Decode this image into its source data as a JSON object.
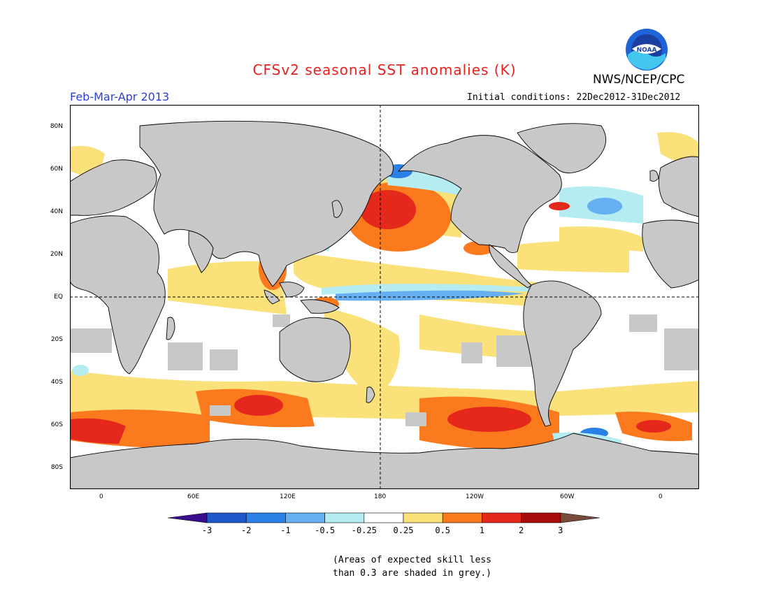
{
  "title": "CFSv2 seasonal SST anomalies (K)",
  "agency": "NWS/NCEP/CPC",
  "logo_text": "NOAA",
  "season": "Feb-Mar-Apr 2013",
  "initial_conditions": "Initial conditions: 22Dec2012-31Dec2012",
  "lat_labels": [
    "80N",
    "60N",
    "40N",
    "20N",
    "EQ",
    "20S",
    "40S",
    "60S",
    "80S"
  ],
  "lon_labels": [
    "0",
    "60E",
    "120E",
    "180",
    "120W",
    "60W",
    "0"
  ],
  "colorbar": {
    "labels": [
      "-3",
      "-2",
      "-1",
      "-0.5",
      "-0.25",
      "0.25",
      "0.5",
      "1",
      "2",
      "3"
    ],
    "colors": [
      "#3a0d8f",
      "#1c58c9",
      "#2b80e6",
      "#66b0f2",
      "#b4ecf2",
      "#ffffff",
      "#fbe17a",
      "#fb7a1e",
      "#e5281c",
      "#a80c0c",
      "#7a4a3c"
    ]
  },
  "note_line1": "(Areas of expected skill less",
  "note_line2": "than 0.3 are shaded in grey.)",
  "colors": {
    "land": "#c8c8c8",
    "title": "#e8201e",
    "season": "#2c3fd8"
  }
}
